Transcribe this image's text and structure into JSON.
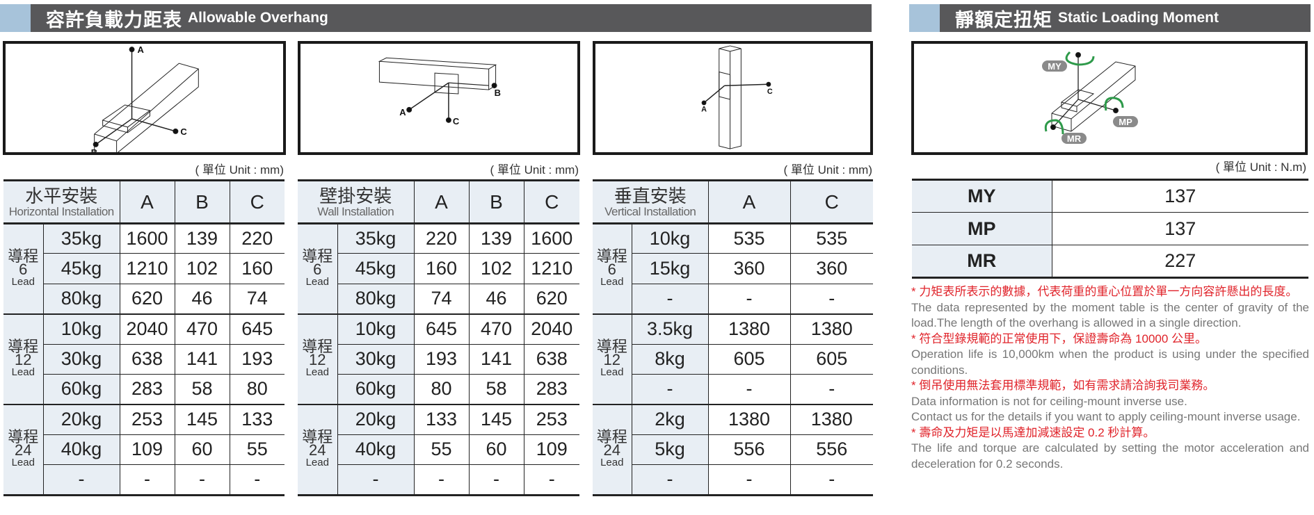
{
  "overhang": {
    "title_zh": "容許負載力距表",
    "title_en": "Allowable Overhang",
    "unit": "( 單位 Unit : mm)",
    "lead_word": "導程",
    "lead_en": "Lead",
    "tables": [
      {
        "name_zh": "水平安裝",
        "name_en": "Horizontal Installation",
        "columns": [
          "A",
          "B",
          "C"
        ],
        "groups": [
          {
            "lead": "6",
            "rows": [
              [
                "35kg",
                "1600",
                "139",
                "220"
              ],
              [
                "45kg",
                "1210",
                "102",
                "160"
              ],
              [
                "80kg",
                "620",
                "46",
                "74"
              ]
            ]
          },
          {
            "lead": "12",
            "rows": [
              [
                "10kg",
                "2040",
                "470",
                "645"
              ],
              [
                "30kg",
                "638",
                "141",
                "193"
              ],
              [
                "60kg",
                "283",
                "58",
                "80"
              ]
            ]
          },
          {
            "lead": "24",
            "rows": [
              [
                "20kg",
                "253",
                "145",
                "133"
              ],
              [
                "40kg",
                "109",
                "60",
                "55"
              ],
              [
                "-",
                "-",
                "-",
                "-"
              ]
            ]
          }
        ]
      },
      {
        "name_zh": "壁掛安裝",
        "name_en": "Wall Installation",
        "columns": [
          "A",
          "B",
          "C"
        ],
        "groups": [
          {
            "lead": "6",
            "rows": [
              [
                "35kg",
                "220",
                "139",
                "1600"
              ],
              [
                "45kg",
                "160",
                "102",
                "1210"
              ],
              [
                "80kg",
                "74",
                "46",
                "620"
              ]
            ]
          },
          {
            "lead": "12",
            "rows": [
              [
                "10kg",
                "645",
                "470",
                "2040"
              ],
              [
                "30kg",
                "193",
                "141",
                "638"
              ],
              [
                "60kg",
                "80",
                "58",
                "283"
              ]
            ]
          },
          {
            "lead": "24",
            "rows": [
              [
                "20kg",
                "133",
                "145",
                "253"
              ],
              [
                "40kg",
                "55",
                "60",
                "109"
              ],
              [
                "-",
                "-",
                "-",
                "-"
              ]
            ]
          }
        ]
      },
      {
        "name_zh": "垂直安裝",
        "name_en": "Vertical Installation",
        "columns": [
          "A",
          "C"
        ],
        "groups": [
          {
            "lead": "6",
            "rows": [
              [
                "10kg",
                "535",
                "535"
              ],
              [
                "15kg",
                "360",
                "360"
              ],
              [
                "-",
                "-",
                "-"
              ]
            ]
          },
          {
            "lead": "12",
            "rows": [
              [
                "3.5kg",
                "1380",
                "1380"
              ],
              [
                "8kg",
                "605",
                "605"
              ],
              [
                "-",
                "-",
                "-"
              ]
            ]
          },
          {
            "lead": "24",
            "rows": [
              [
                "2kg",
                "1380",
                "1380"
              ],
              [
                "5kg",
                "556",
                "556"
              ],
              [
                "-",
                "-",
                "-"
              ]
            ]
          }
        ]
      }
    ],
    "diagram_labels": [
      "A",
      "B",
      "C"
    ]
  },
  "moment": {
    "title_zh": "靜額定扭矩",
    "title_en": "Static Loading Moment",
    "unit": "( 單位 Unit : N.m)",
    "diagram_labels": {
      "my": "MY",
      "mp": "MP",
      "mr": "MR"
    },
    "rows": [
      {
        "key": "MY",
        "value": "137"
      },
      {
        "key": "MP",
        "value": "137"
      },
      {
        "key": "MR",
        "value": "227"
      }
    ],
    "notes": [
      {
        "zh": "* 力矩表所表示的數據，代表荷重的重心位置於單一方向容許懸出的長度。",
        "en": [
          "The data represented by the moment table is the center of gravity of the load.The length of the overhang is allowed in a single direction."
        ]
      },
      {
        "zh": "* 符合型錄規範的正常使用下，保證壽命為 10000 公里。",
        "en": [
          "Operation life is 10,000km when the product is using under the specified conditions."
        ]
      },
      {
        "zh": "* 倒吊使用無法套用標準規範，如有需求請洽詢我司業務。",
        "en": [
          "Data information is not for ceiling-mount inverse use.",
          "Contact us for the details if you want to apply ceiling-mount inverse usage."
        ]
      },
      {
        "zh": "* 壽命及力矩是以馬達加減速設定 0.2 秒計算。",
        "en": [
          "The life and torque are calculated by setting the motor acceleration and deceleration for 0.2 seconds."
        ]
      }
    ]
  },
  "colors": {
    "header_bg": "#58585a",
    "header_accent": "#a7c3da",
    "cell_bg": "#e8eef4",
    "note_red": "#e0232a",
    "arrow_green": "#2e9a4a",
    "badge_gray": "#8a8a8a"
  }
}
